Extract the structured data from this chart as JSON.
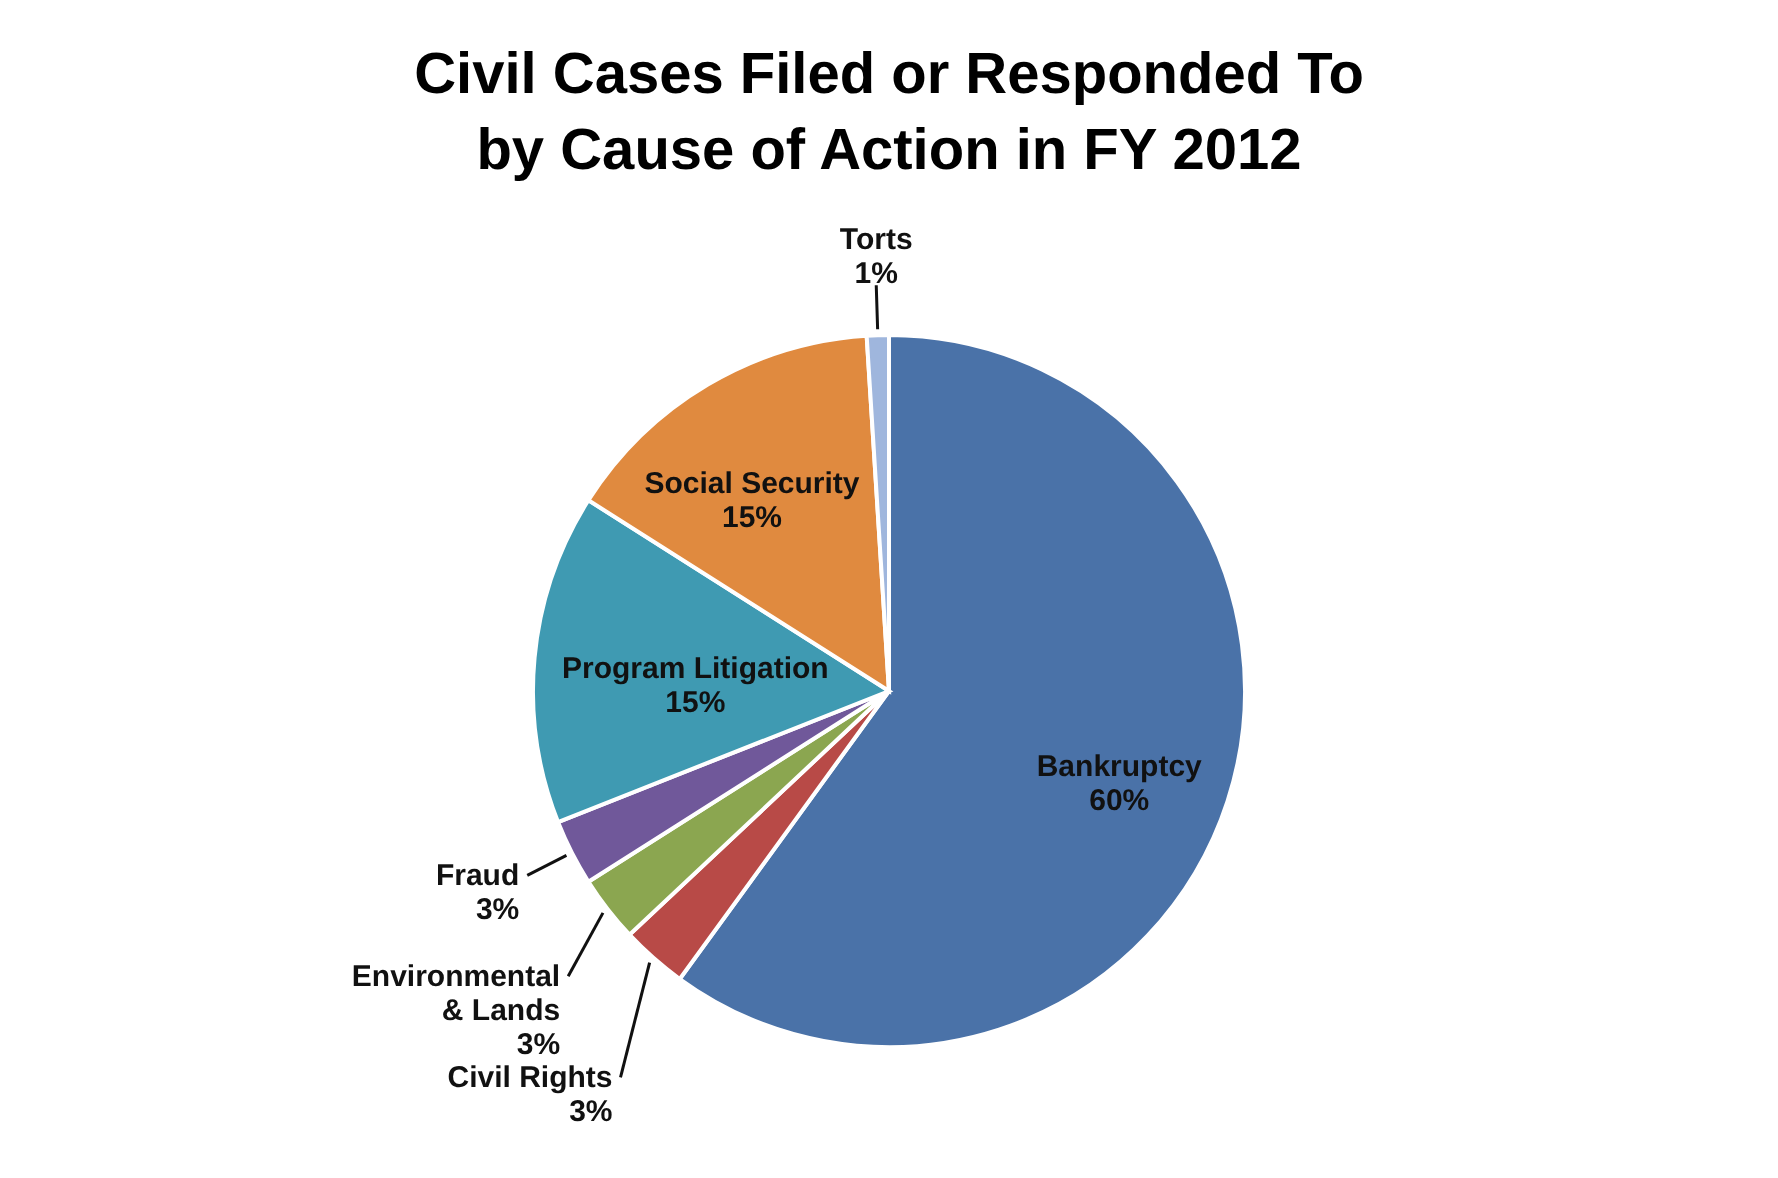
{
  "chart_data": {
    "type": "pie",
    "title": "Civil Cases Filed or Responded To by Cause of Action in FY 2012",
    "categories": [
      "Bankruptcy",
      "Civil Rights",
      "Environmental & Lands",
      "Fraud",
      "Program Litigation",
      "Social Security",
      "Torts"
    ],
    "values": [
      60,
      3,
      3,
      3,
      15,
      15,
      1
    ],
    "value_labels": [
      "60%",
      "3%",
      "3%",
      "3%",
      "15%",
      "15%",
      "1%"
    ],
    "colors": [
      "#4a72a8",
      "#b84a47",
      "#8ba650",
      "#70589a",
      "#3f9ab2",
      "#e08a3f",
      "#9fb6dd"
    ]
  }
}
